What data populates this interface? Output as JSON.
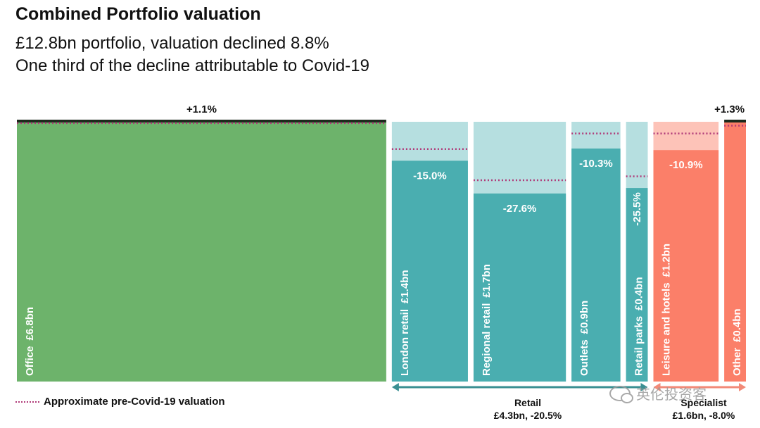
{
  "title": "Combined Portfolio valuation",
  "subtitle_line1": "£12.8bn portfolio, valuation declined 8.8%",
  "subtitle_line2": "One third of the decline attributable to Covid-19",
  "legend_label": "Approximate pre-Covid-19 valuation",
  "watermark_text": "英伦投资客",
  "colors": {
    "office": "#6db36b",
    "retail": "#4aaeb0",
    "retail_light": "#b6dfe0",
    "specialist": "#fb7f69",
    "specialist_light": "#fdc3b8",
    "dotted": "#b03a78",
    "gain": "#1c2a1c"
  },
  "groups": [
    {
      "name": "Retail",
      "summary": "£4.3bn, -20.5%"
    },
    {
      "name": "Specialist",
      "summary": "£1.6bn, -8.0%"
    }
  ],
  "chart_data": {
    "type": "mekko",
    "title": "Combined Portfolio valuation",
    "xlabel": "",
    "ylabel": "",
    "ylim": [
      0,
      1
    ],
    "series": [
      {
        "segment": "Office",
        "value_label": "£6.8bn",
        "value_bn": 6.8,
        "change_label": "+1.1%",
        "change_pct": 1.1,
        "pre_covid_level": 0.995,
        "group": "office"
      },
      {
        "segment": "London retail",
        "value_label": "£1.4bn",
        "value_bn": 1.4,
        "change_label": "-15.0%",
        "change_pct": -15.0,
        "pre_covid_level": 0.895,
        "group": "retail"
      },
      {
        "segment": "Regional retail",
        "value_label": "£1.7bn",
        "value_bn": 1.7,
        "change_label": "-27.6%",
        "change_pct": -27.6,
        "pre_covid_level": 0.775,
        "group": "retail"
      },
      {
        "segment": "Outlets",
        "value_label": "£0.9bn",
        "value_bn": 0.9,
        "change_label": "-10.3%",
        "change_pct": -10.3,
        "pre_covid_level": 0.955,
        "group": "retail"
      },
      {
        "segment": "Retail parks",
        "value_label": "£0.4bn",
        "value_bn": 0.4,
        "change_label": "-25.5%",
        "change_pct": -25.5,
        "pre_covid_level": 0.79,
        "group": "retail"
      },
      {
        "segment": "Leisure and hotels",
        "value_label": "£1.2bn",
        "value_bn": 1.2,
        "change_label": "-10.9%",
        "change_pct": -10.9,
        "pre_covid_level": 0.955,
        "group": "specialist"
      },
      {
        "segment": "Other",
        "value_label": "£0.4bn",
        "value_bn": 0.4,
        "change_label": "+1.3%",
        "change_pct": 1.3,
        "pre_covid_level": 0.985,
        "group": "specialist"
      }
    ]
  }
}
